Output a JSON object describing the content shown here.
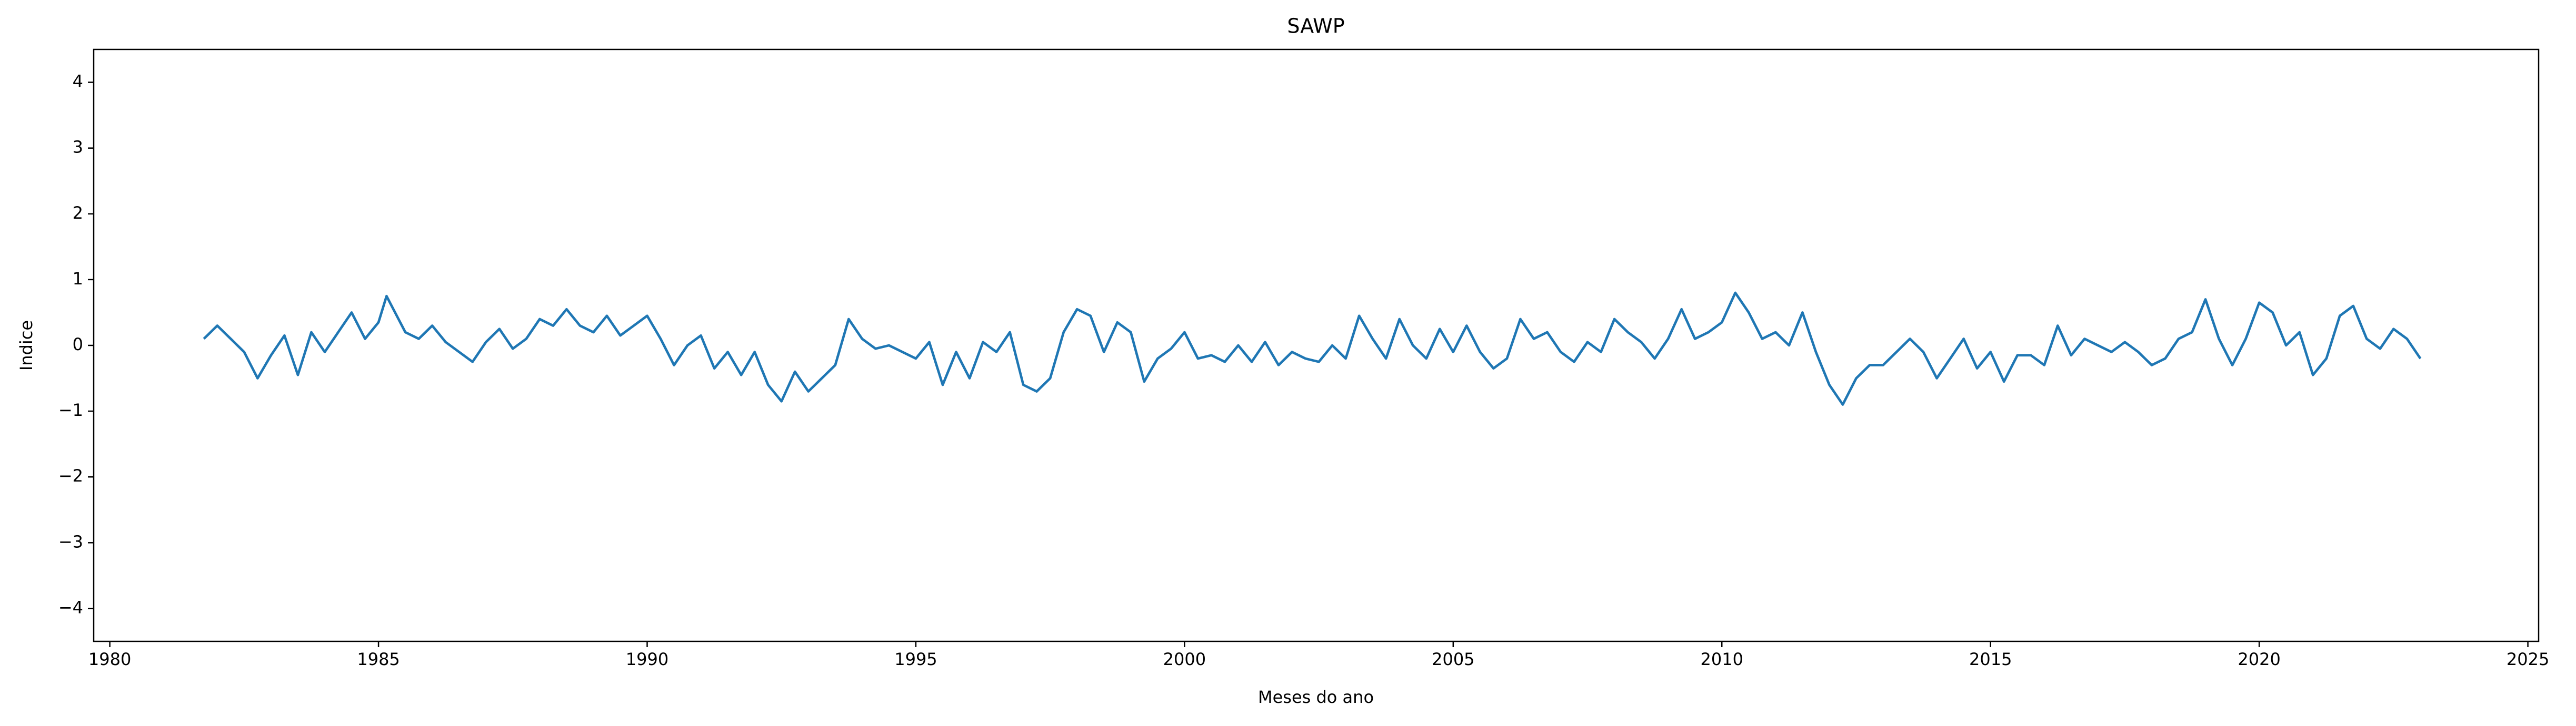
{
  "chart_data": {
    "type": "line",
    "title": "SAWP",
    "xlabel": "Meses do ano",
    "ylabel": "Indice",
    "color": "#1f77b4",
    "xlim": [
      1979.7,
      2025.2
    ],
    "ylim": [
      -4.5,
      4.5
    ],
    "xticks": [
      1980,
      1985,
      1990,
      1995,
      2000,
      2005,
      2010,
      2015,
      2020,
      2025
    ],
    "yticks": [
      {
        "value": -4,
        "label": "−4"
      },
      {
        "value": -3,
        "label": "−3"
      },
      {
        "value": -2,
        "label": "−2"
      },
      {
        "value": -1,
        "label": "−1"
      },
      0,
      1,
      2,
      3,
      4
    ],
    "x": [
      1981.75,
      1982.0,
      1982.25,
      1982.5,
      1982.75,
      1983.0,
      1983.25,
      1983.5,
      1983.75,
      1984.0,
      1984.25,
      1984.5,
      1984.75,
      1985.0,
      1985.15,
      1985.5,
      1985.75,
      1986.0,
      1986.25,
      1986.5,
      1986.75,
      1987.0,
      1987.25,
      1987.5,
      1987.75,
      1988.0,
      1988.25,
      1988.5,
      1988.75,
      1989.0,
      1989.25,
      1989.5,
      1989.75,
      1990.0,
      1990.25,
      1990.5,
      1990.75,
      1991.0,
      1991.25,
      1991.5,
      1991.75,
      1992.0,
      1992.25,
      1992.5,
      1992.75,
      1993.0,
      1993.25,
      1993.5,
      1993.75,
      1994.0,
      1994.25,
      1994.5,
      1994.75,
      1995.0,
      1995.25,
      1995.5,
      1995.75,
      1996.0,
      1996.25,
      1996.5,
      1996.75,
      1997.0,
      1997.25,
      1997.5,
      1997.75,
      1998.0,
      1998.25,
      1998.5,
      1998.75,
      1999.0,
      1999.25,
      1999.5,
      1999.75,
      2000.0,
      2000.25,
      2000.5,
      2000.75,
      2001.0,
      2001.25,
      2001.5,
      2001.75,
      2002.0,
      2002.25,
      2002.5,
      2002.75,
      2003.0,
      2003.25,
      2003.5,
      2003.75,
      2004.0,
      2004.25,
      2004.5,
      2004.75,
      2005.0,
      2005.25,
      2005.5,
      2005.75,
      2006.0,
      2006.25,
      2006.5,
      2006.75,
      2007.0,
      2007.25,
      2007.5,
      2007.75,
      2008.0,
      2008.25,
      2008.5,
      2008.75,
      2009.0,
      2009.25,
      2009.5,
      2009.75,
      2010.0,
      2010.25,
      2010.5,
      2010.75,
      2011.0,
      2011.25,
      2011.5,
      2011.75,
      2012.0,
      2012.25,
      2012.5,
      2012.75,
      2013.0,
      2013.25,
      2013.5,
      2013.75,
      2014.0,
      2014.25,
      2014.5,
      2014.75,
      2015.0,
      2015.25,
      2015.5,
      2015.75,
      2016.0,
      2016.25,
      2016.5,
      2016.75,
      2017.0,
      2017.25,
      2017.5,
      2017.75,
      2018.0,
      2018.25,
      2018.5,
      2018.75,
      2019.0,
      2019.25,
      2019.5,
      2019.75,
      2020.0,
      2020.25,
      2020.5,
      2020.75,
      2021.0,
      2021.25,
      2021.5,
      2021.75,
      2022.0,
      2022.25,
      2022.5,
      2022.75,
      2023.0
    ],
    "values": [
      0.1,
      0.3,
      0.1,
      -0.1,
      -0.5,
      -0.15,
      0.15,
      -0.45,
      0.2,
      -0.1,
      0.2,
      0.5,
      0.1,
      0.35,
      0.75,
      0.2,
      0.1,
      0.3,
      0.05,
      -0.1,
      -0.25,
      0.05,
      0.25,
      -0.05,
      0.1,
      0.4,
      0.3,
      0.55,
      0.3,
      0.2,
      0.45,
      0.15,
      0.3,
      0.45,
      0.1,
      -0.3,
      0.0,
      0.15,
      -0.35,
      -0.1,
      -0.45,
      -0.1,
      -0.6,
      -0.85,
      -0.4,
      -0.7,
      -0.5,
      -0.3,
      0.4,
      0.1,
      -0.05,
      0.0,
      -0.1,
      -0.2,
      0.05,
      -0.6,
      -0.1,
      -0.5,
      0.05,
      -0.1,
      0.2,
      -0.6,
      -0.7,
      -0.5,
      0.2,
      0.55,
      0.45,
      -0.1,
      0.35,
      0.2,
      -0.55,
      -0.2,
      -0.05,
      0.2,
      -0.2,
      -0.15,
      -0.25,
      0.0,
      -0.25,
      0.05,
      -0.3,
      -0.1,
      -0.2,
      -0.25,
      0.0,
      -0.2,
      0.45,
      0.1,
      -0.2,
      0.4,
      0.0,
      -0.2,
      0.25,
      -0.1,
      0.3,
      -0.1,
      -0.35,
      -0.2,
      0.4,
      0.1,
      0.2,
      -0.1,
      -0.25,
      0.05,
      -0.1,
      0.4,
      0.2,
      0.05,
      -0.2,
      0.1,
      0.55,
      0.1,
      0.2,
      0.35,
      0.8,
      0.5,
      0.1,
      0.2,
      0.0,
      0.5,
      -0.1,
      -0.6,
      -0.9,
      -0.5,
      -0.3,
      -0.3,
      -0.1,
      0.1,
      -0.1,
      -0.5,
      -0.2,
      0.1,
      -0.35,
      -0.1,
      -0.55,
      -0.15,
      -0.15,
      -0.3,
      0.3,
      -0.15,
      0.1,
      0.0,
      -0.1,
      0.05,
      -0.1,
      -0.3,
      -0.2,
      0.1,
      0.2,
      0.7,
      0.1,
      -0.3,
      0.1,
      0.65,
      0.5,
      0.0,
      0.2,
      -0.45,
      -0.2,
      0.45,
      0.6,
      0.1,
      -0.05,
      0.25,
      0.1,
      -0.2
    ]
  }
}
